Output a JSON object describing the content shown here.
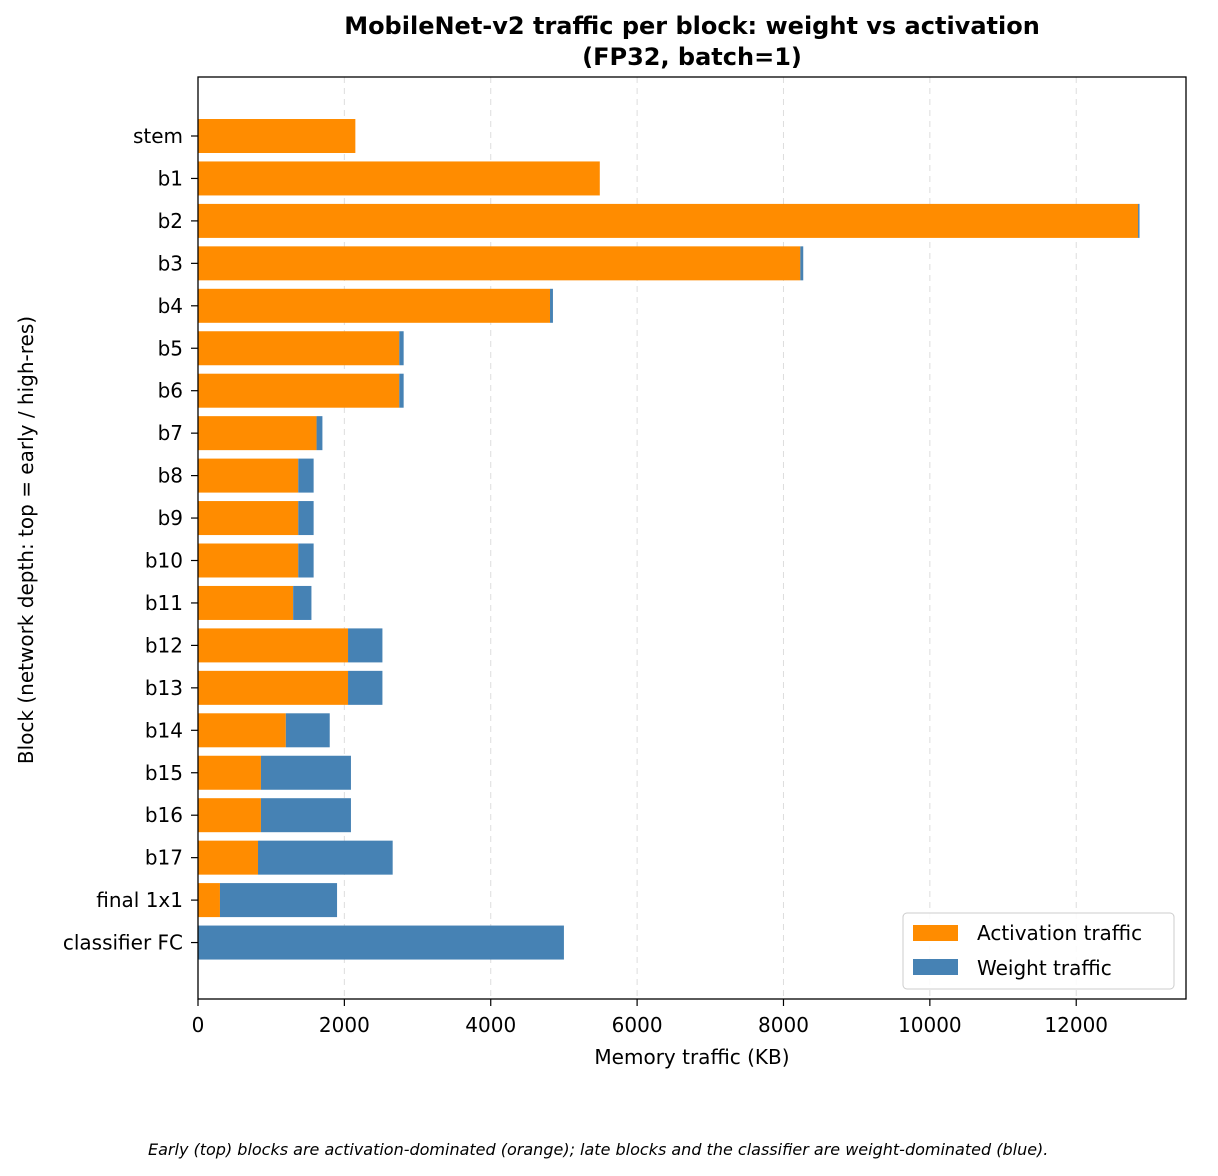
{
  "chart_data": {
    "type": "bar",
    "orientation": "horizontal",
    "stacked": true,
    "title": "MobileNet-v2 traffic per block: weight vs activation",
    "subtitle": "(FP32, batch=1)",
    "xlabel": "Memory traffic (KB)",
    "ylabel": "Block (network depth: top = early / high-res)",
    "xlim": [
      0,
      13500
    ],
    "xticks": [
      0,
      2000,
      4000,
      6000,
      8000,
      10000,
      12000
    ],
    "grid": "x, dashed",
    "legend_position": "lower-right",
    "categories": [
      "stem",
      "b1",
      "b2",
      "b3",
      "b4",
      "b5",
      "b6",
      "b7",
      "b8",
      "b9",
      "b10",
      "b11",
      "b12",
      "b13",
      "b14",
      "b15",
      "b16",
      "b17",
      "final 1x1",
      "classifier FC"
    ],
    "series": [
      {
        "name": "Activation traffic",
        "color": "#ff8c00",
        "values": [
          2150,
          5490,
          12845,
          8230,
          4810,
          2750,
          2750,
          1620,
          1370,
          1370,
          1370,
          1300,
          2050,
          2050,
          1200,
          860,
          860,
          820,
          300,
          0
        ]
      },
      {
        "name": "Weight traffic",
        "color": "#4682b4",
        "values": [
          0,
          0,
          20,
          40,
          40,
          60,
          60,
          80,
          210,
          210,
          210,
          250,
          470,
          470,
          600,
          1230,
          1230,
          1840,
          1600,
          5000
        ]
      }
    ]
  },
  "caption": "Early (top) blocks are activation-dominated (orange); late blocks and the classifier are weight-dominated (blue)."
}
